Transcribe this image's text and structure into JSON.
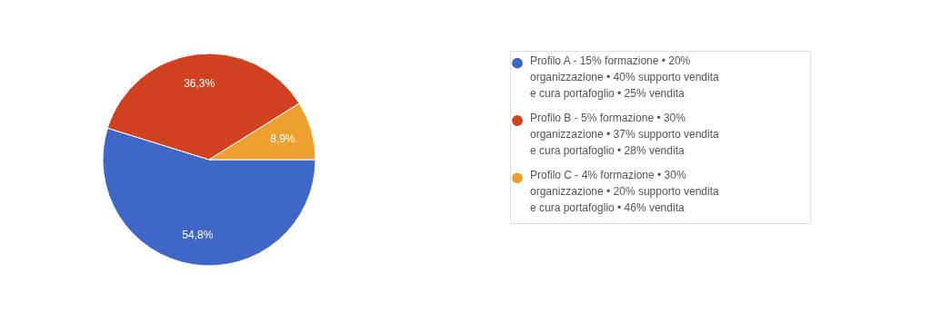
{
  "chart_data": {
    "type": "pie",
    "categories": [
      "Profilo A - 15% formazione • 20% organizzazione • 40% supporto vendita e cura portafoglio • 25% vendita",
      "Profilo B - 5% formazione • 30% organizzazione • 37% supporto vendita e cura portafoglio • 28% vendita",
      "Profilo C - 4% formazione • 30% organizzazione • 20% supporto vendita e cura portafoglio • 46% vendita"
    ],
    "values": [
      54.8,
      36.3,
      8.9
    ],
    "value_labels": [
      "54,8%",
      "36,3%",
      "8,9%"
    ],
    "colors": [
      "#3e67c8",
      "#d2411f",
      "#eea02f"
    ],
    "legend": "right"
  }
}
